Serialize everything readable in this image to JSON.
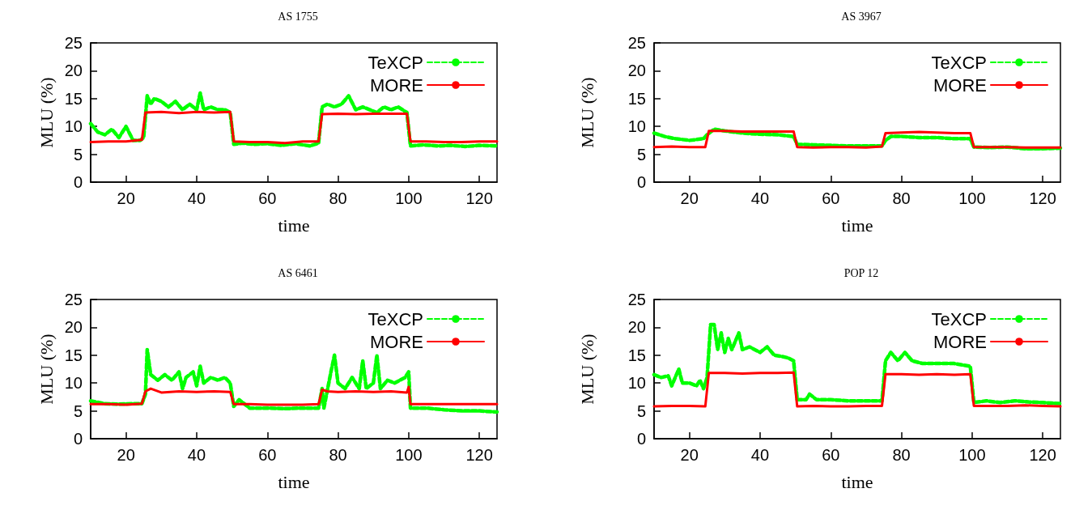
{
  "chart_data": [
    {
      "type": "line",
      "title": "AS 1755",
      "xlabel": "time",
      "ylabel": "MLU (%)",
      "xlim": [
        10,
        125
      ],
      "xticks": [
        20,
        40,
        60,
        80,
        100,
        120
      ],
      "ylim": [
        0,
        25
      ],
      "yticks": [
        0,
        5,
        10,
        15,
        20,
        25
      ],
      "legend": "top right",
      "marker": "none",
      "series": [
        {
          "name": "TeXCP",
          "color": "#00ff00",
          "line_style": "dashed",
          "x": [
            10,
            12,
            14,
            16,
            18,
            20,
            22,
            24,
            25,
            26,
            27,
            28,
            30,
            32,
            34,
            36,
            38,
            40,
            41,
            42,
            44,
            46,
            48,
            49.5,
            50.5,
            53,
            56,
            60,
            64,
            68,
            72,
            74.5,
            75.5,
            77,
            79,
            81,
            83,
            85,
            87,
            89,
            91,
            93,
            95,
            97,
            99.5,
            100.5,
            104,
            108,
            112,
            116,
            120,
            125
          ],
          "values": [
            10.5,
            9,
            8.5,
            9.5,
            8,
            10,
            7.5,
            7.5,
            8,
            15.5,
            14,
            15,
            14.5,
            13.5,
            14.5,
            13,
            14,
            13,
            16,
            13,
            13.5,
            13,
            13,
            12.5,
            6.8,
            7,
            6.8,
            6.9,
            6.6,
            6.9,
            6.5,
            7,
            13.5,
            14,
            13.5,
            14,
            15.5,
            13,
            13.5,
            13,
            12.5,
            13.5,
            13,
            13.5,
            12.5,
            6.5,
            6.7,
            6.5,
            6.6,
            6.4,
            6.6,
            6.5
          ]
        },
        {
          "name": "MORE",
          "color": "#ff0000",
          "line_style": "solid",
          "x": [
            10,
            15,
            20,
            24.5,
            25.5,
            30,
            35,
            40,
            45,
            49.5,
            50.5,
            55,
            60,
            65,
            70,
            74.5,
            75.5,
            80,
            85,
            90,
            95,
            99.5,
            100.5,
            105,
            110,
            115,
            120,
            125
          ],
          "values": [
            7.2,
            7.3,
            7.3,
            7.6,
            12.5,
            12.6,
            12.4,
            12.6,
            12.5,
            12.6,
            7.3,
            7.2,
            7.2,
            7,
            7.3,
            7.3,
            12.2,
            12.3,
            12.2,
            12.3,
            12.3,
            12.3,
            7.3,
            7.3,
            7.2,
            7.2,
            7.3,
            7.3
          ]
        }
      ]
    },
    {
      "type": "line",
      "title": "AS 3967",
      "xlabel": "time",
      "ylabel": "MLU (%)",
      "xlim": [
        10,
        125
      ],
      "xticks": [
        20,
        40,
        60,
        80,
        100,
        120
      ],
      "ylim": [
        0,
        25
      ],
      "yticks": [
        0,
        5,
        10,
        15,
        20,
        25
      ],
      "legend": "top right",
      "marker": "none",
      "series": [
        {
          "name": "TeXCP",
          "color": "#00ff00",
          "line_style": "dashed",
          "x": [
            10,
            13,
            16,
            20,
            24,
            25,
            27,
            30,
            35,
            40,
            45,
            49.5,
            50.5,
            55,
            60,
            65,
            70,
            74.5,
            75.5,
            77,
            80,
            85,
            90,
            95,
            99.5,
            100.5,
            105,
            110,
            115,
            120,
            125
          ],
          "values": [
            8.8,
            8.2,
            7.8,
            7.5,
            7.8,
            8.5,
            9.5,
            9.2,
            8.8,
            8.6,
            8.5,
            8.2,
            6.8,
            6.7,
            6.6,
            6.5,
            6.5,
            6.5,
            7.5,
            8.2,
            8.2,
            8,
            8,
            7.8,
            7.8,
            6.3,
            6.2,
            6.3,
            6,
            6,
            6.1
          ]
        },
        {
          "name": "MORE",
          "color": "#ff0000",
          "line_style": "solid",
          "x": [
            10,
            15,
            20,
            24.5,
            25.5,
            30,
            35,
            40,
            45,
            49.5,
            50.5,
            55,
            60,
            65,
            70,
            74.5,
            75.5,
            80,
            85,
            90,
            95,
            99.5,
            100.5,
            105,
            110,
            115,
            120,
            125
          ],
          "values": [
            6.3,
            6.4,
            6.3,
            6.3,
            9.2,
            9.2,
            9.1,
            9.1,
            9.1,
            9.1,
            6.3,
            6.2,
            6.3,
            6.3,
            6.2,
            6.4,
            8.8,
            8.9,
            9,
            8.9,
            8.8,
            8.8,
            6.3,
            6.3,
            6.3,
            6.2,
            6.2,
            6.2
          ]
        }
      ]
    },
    {
      "type": "line",
      "title": "AS 6461",
      "xlabel": "time",
      "ylabel": "MLU (%)",
      "xlim": [
        10,
        125
      ],
      "xticks": [
        20,
        40,
        60,
        80,
        100,
        120
      ],
      "ylim": [
        0,
        25
      ],
      "yticks": [
        0,
        5,
        10,
        15,
        20,
        25
      ],
      "legend": "top right",
      "marker": "none",
      "series": [
        {
          "name": "TeXCP",
          "color": "#00ff00",
          "line_style": "dashed",
          "x": [
            10,
            14,
            18,
            22,
            24.5,
            25.5,
            26,
            27,
            29,
            31,
            33,
            35,
            36,
            37,
            39,
            40,
            41,
            42,
            44,
            46,
            48,
            49.5,
            50.5,
            52,
            55,
            60,
            65,
            70,
            74.5,
            75.5,
            76,
            78,
            79,
            80,
            82,
            84,
            86,
            87,
            88,
            90,
            91,
            92,
            94,
            96,
            99,
            100,
            100.5,
            105,
            110,
            115,
            120,
            125
          ],
          "values": [
            6.8,
            6.3,
            6.2,
            6.3,
            6.3,
            8,
            16,
            11.5,
            10.5,
            11.5,
            10.5,
            12,
            9,
            11,
            12,
            9.5,
            13,
            10,
            11,
            10.5,
            11,
            10,
            5.8,
            7,
            5.5,
            5.5,
            5.4,
            5.5,
            5.5,
            9,
            5.5,
            12,
            15,
            10,
            9,
            11,
            9,
            14,
            9,
            10,
            15,
            9,
            10.5,
            10,
            11,
            12,
            5.5,
            5.5,
            5.2,
            5,
            5,
            4.8
          ]
        },
        {
          "name": "MORE",
          "color": "#ff0000",
          "line_style": "solid",
          "x": [
            10,
            15,
            20,
            24.5,
            25.5,
            27,
            30,
            35,
            40,
            45,
            49.5,
            50.5,
            55,
            60,
            65,
            70,
            74.5,
            75.5,
            77,
            80,
            85,
            90,
            95,
            99.5,
            100,
            100.5,
            105,
            110,
            115,
            120,
            125
          ],
          "values": [
            6.2,
            6.2,
            6.1,
            6.3,
            8.5,
            9,
            8.3,
            8.5,
            8.4,
            8.5,
            8.4,
            6.2,
            6.2,
            6.1,
            6.1,
            6.1,
            6.2,
            8.8,
            8.5,
            8.4,
            8.5,
            8.4,
            8.5,
            8.3,
            9.3,
            6.2,
            6.2,
            6.2,
            6.2,
            6.2,
            6.2
          ]
        }
      ]
    },
    {
      "type": "line",
      "title": "POP 12",
      "xlabel": "time",
      "ylabel": "MLU (%)",
      "xlim": [
        10,
        125
      ],
      "xticks": [
        20,
        40,
        60,
        80,
        100,
        120
      ],
      "ylim": [
        0,
        25
      ],
      "yticks": [
        0,
        5,
        10,
        15,
        20,
        25
      ],
      "legend": "top right",
      "marker": "none",
      "series": [
        {
          "name": "TeXCP",
          "color": "#00ff00",
          "line_style": "dashed",
          "x": [
            10,
            12,
            14,
            15,
            17,
            18,
            20,
            22,
            23,
            24,
            25,
            26,
            27,
            28,
            29,
            30,
            31,
            32,
            34,
            35,
            37,
            40,
            42,
            44,
            46,
            48,
            49.5,
            50.5,
            53,
            54,
            56,
            60,
            65,
            70,
            74.5,
            75.5,
            77,
            79,
            81,
            83,
            86,
            90,
            95,
            99.5,
            100.5,
            104,
            108,
            112,
            116,
            120,
            125
          ],
          "values": [
            11.5,
            11,
            11.3,
            9.5,
            12.5,
            10,
            10,
            9.5,
            10.5,
            9,
            11,
            20.5,
            20.5,
            16,
            19,
            15.5,
            18,
            16,
            19,
            16,
            16.5,
            15.5,
            16.5,
            15,
            14.8,
            14.5,
            14,
            7,
            7,
            8,
            7,
            7,
            6.8,
            6.8,
            6.8,
            14,
            15.5,
            14,
            15.5,
            14,
            13.5,
            13.5,
            13.5,
            13,
            6.5,
            6.8,
            6.5,
            6.8,
            6.6,
            6.5,
            6.3
          ]
        },
        {
          "name": "MORE",
          "color": "#ff0000",
          "line_style": "solid",
          "x": [
            10,
            15,
            20,
            24.5,
            25.5,
            30,
            35,
            40,
            45,
            49.5,
            50.5,
            55,
            60,
            65,
            70,
            74.5,
            75.5,
            80,
            85,
            90,
            95,
            99.5,
            100.5,
            105,
            110,
            115,
            120,
            125
          ],
          "values": [
            5.8,
            5.9,
            5.9,
            5.8,
            11.8,
            11.8,
            11.7,
            11.8,
            11.8,
            11.9,
            5.8,
            5.9,
            5.8,
            5.8,
            5.9,
            5.9,
            11.6,
            11.6,
            11.5,
            11.6,
            11.5,
            11.6,
            5.9,
            5.9,
            5.9,
            6,
            5.9,
            5.8
          ]
        }
      ]
    }
  ]
}
